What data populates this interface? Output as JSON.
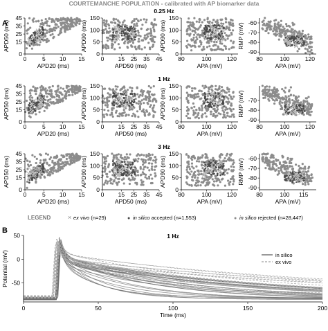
{
  "figure_title": "COURTEMANCHE POPULATION - calibrated with AP biomarker data",
  "panel_a_label": "A",
  "panel_b_label": "B",
  "legend": {
    "title": "LEGEND",
    "ex_vivo": {
      "symbol": "×",
      "pre": "",
      "italic": "ex vivo",
      "post": " (n=29)"
    },
    "accepted": {
      "symbol": "●",
      "pre": "",
      "italic": "in silico",
      "post": " accepted (n=1,553)"
    },
    "rejected": {
      "symbol": "●",
      "pre": "",
      "italic": "in silico",
      "post": " rejected (n=28,447)"
    }
  },
  "colors": {
    "rejected": "#8c8c8c",
    "accepted": "#4a4a4a",
    "ex_vivo": "#b8b8b8",
    "sim_trace": "#6e6e6e",
    "exp_trace": "#a8a8a8"
  },
  "chart_data": [
    {
      "type": "scatter",
      "row_title": "0.25 Hz",
      "xlabel": "APD20 (ms)",
      "ylabel": "APD50 (ms)",
      "xlim": [
        0,
        15
      ],
      "ylim": [
        0,
        45
      ],
      "xticks": [
        "0",
        "5",
        "10",
        "15"
      ],
      "yticks": [
        "0",
        "15",
        "25",
        "35",
        "45"
      ]
    },
    {
      "type": "scatter",
      "xlabel": "APD50 (ms)",
      "ylabel": "APD90 (ms)",
      "xlim": [
        0,
        45
      ],
      "ylim": [
        0,
        150
      ],
      "xticks": [
        "0",
        "15",
        "25",
        "35",
        "45"
      ],
      "yticks": [
        "0",
        "50",
        "100",
        "150"
      ]
    },
    {
      "type": "scatter",
      "xlabel": "APA (mV)",
      "ylabel": "APD90 (ms)",
      "xlim": [
        80,
        125
      ],
      "ylim": [
        0,
        150
      ],
      "xticks": [
        "80",
        "100",
        "120"
      ],
      "yticks": [
        "0",
        "50",
        "100",
        "150"
      ]
    },
    {
      "type": "scatter",
      "xlabel": "APA (mV)",
      "ylabel": "RMP (mV)",
      "xlim": [
        80,
        125
      ],
      "ylim": [
        -92,
        -55
      ],
      "xticks": [
        "80",
        "100",
        "120"
      ],
      "yticks": [
        "-60",
        "-70",
        "-80",
        "-90"
      ]
    },
    {
      "type": "scatter",
      "row_title": "1 Hz",
      "xlabel": "APD20 (ms)",
      "ylabel": "APD50 (ms)",
      "xlim": [
        0,
        15
      ],
      "ylim": [
        0,
        45
      ],
      "xticks": [
        "0",
        "5",
        "10",
        "15"
      ],
      "yticks": [
        "0",
        "15",
        "25",
        "35",
        "45"
      ]
    },
    {
      "type": "scatter",
      "xlabel": "APD50 (ms)",
      "ylabel": "APD90 (ms)",
      "xlim": [
        0,
        45
      ],
      "ylim": [
        0,
        150
      ],
      "xticks": [
        "0",
        "15",
        "25",
        "35",
        "45"
      ],
      "yticks": [
        "0",
        "50",
        "100",
        "150"
      ]
    },
    {
      "type": "scatter",
      "xlabel": "APA (mV)",
      "ylabel": "APD90 (ms)",
      "xlim": [
        80,
        125
      ],
      "ylim": [
        0,
        150
      ],
      "xticks": [
        "80",
        "100",
        "120"
      ],
      "yticks": [
        "0",
        "50",
        "100",
        "150"
      ]
    },
    {
      "type": "scatter",
      "xlabel": "APA (mV)",
      "ylabel": "RMP (mV)",
      "xlim": [
        80,
        125
      ],
      "ylim": [
        -92,
        -55
      ],
      "xticks": [
        "80",
        "100",
        "120"
      ],
      "yticks": [
        "-70",
        "-80",
        "-90"
      ]
    },
    {
      "type": "scatter",
      "row_title": "3 Hz",
      "xlabel": "APD20 (ms)",
      "ylabel": "APD50 (ms)",
      "xlim": [
        0,
        15
      ],
      "ylim": [
        0,
        45
      ],
      "xticks": [
        "0",
        "5",
        "10",
        "15"
      ],
      "yticks": [
        "0",
        "15",
        "25",
        "35",
        "45"
      ]
    },
    {
      "type": "scatter",
      "xlabel": "APD50 (ms)",
      "ylabel": "APD90 (ms)",
      "xlim": [
        0,
        45
      ],
      "ylim": [
        0,
        150
      ],
      "xticks": [
        "0",
        "15",
        "25",
        "35",
        "45"
      ],
      "yticks": [
        "0",
        "50",
        "100",
        "150"
      ]
    },
    {
      "type": "scatter",
      "xlabel": "APA (mV)",
      "ylabel": "APD90 (ms)",
      "xlim": [
        80,
        125
      ],
      "ylim": [
        0,
        150
      ],
      "xticks": [
        "80",
        "100",
        "120"
      ],
      "yticks": [
        "0",
        "50",
        "100",
        "150"
      ]
    },
    {
      "type": "scatter",
      "xlabel": "APA (mV)",
      "ylabel": "RMP (mV)",
      "xlim": [
        80,
        125
      ],
      "ylim": [
        -92,
        -55
      ],
      "xticks": [
        "80",
        "100",
        "115"
      ],
      "yticks": [
        "-60",
        "-70",
        "-80",
        "-90"
      ]
    },
    {
      "type": "line",
      "title": "1 Hz",
      "xlabel": "Time (ms)",
      "ylabel": "Potential (mV)",
      "xlim": [
        0,
        200
      ],
      "ylim": [
        -90,
        50
      ],
      "xticks": [
        "0",
        "50",
        "100",
        "150",
        "200"
      ],
      "yticks": [
        "50",
        "0",
        "-50"
      ],
      "legend": [
        "in silico",
        "ex vivo"
      ],
      "legend_position": "right",
      "series": [
        {
          "name": "in silico",
          "style": "solid",
          "x": [
            0,
            20,
            22,
            25,
            30,
            40,
            50,
            75,
            100,
            125,
            150,
            175,
            200
          ],
          "y": [
            -80,
            -80,
            35,
            20,
            0,
            -10,
            -20,
            -35,
            -50,
            -60,
            -68,
            -73,
            -76
          ]
        },
        {
          "name": "ex vivo",
          "style": "dashed",
          "x": [
            0,
            19,
            21,
            24,
            30,
            40,
            50,
            75,
            100,
            125,
            150,
            175,
            200
          ],
          "y": [
            -78,
            -78,
            45,
            25,
            5,
            -5,
            -15,
            -30,
            -45,
            -55,
            -63,
            -68,
            -72
          ]
        }
      ]
    }
  ]
}
